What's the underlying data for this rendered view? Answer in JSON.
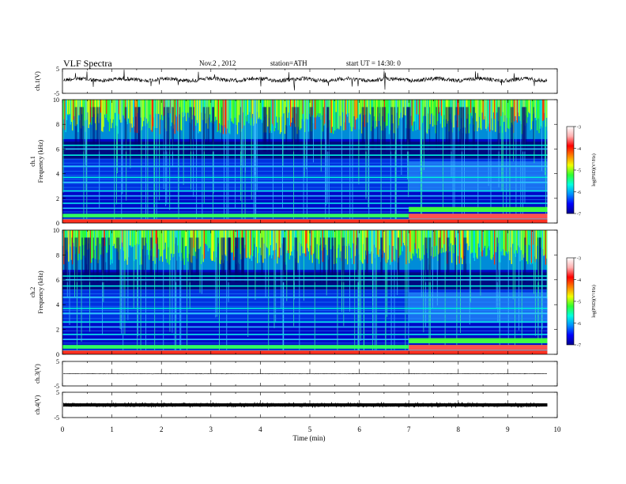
{
  "header": {
    "title": "VLF  Spectra",
    "date": "Nov.2   , 2012",
    "station": "station=ATH",
    "start": "start  UT  =    14:30: 0"
  },
  "chart_data": [
    {
      "type": "line",
      "panel": "ch1-waveform",
      "ylabel": "ch.1(V)",
      "ylim": [
        -5,
        5
      ],
      "yticks": [
        "5",
        "-5"
      ],
      "baseline_v": 0.6,
      "note": "broadband waveform with impulsive spikes"
    },
    {
      "type": "heatmap",
      "panel": "ch1-spectrogram",
      "ylabel": "Frequency  (kHz)",
      "channel_label": "ch.1",
      "ylim": [
        0,
        10
      ],
      "yticks": [
        "0",
        "2",
        "4",
        "6",
        "8",
        "10"
      ],
      "colorbar": {
        "label": "log(PSD)(V²/Hz)",
        "range": [
          -7,
          -3
        ],
        "ticks": [
          "-3",
          "-4",
          "-5",
          "-6",
          "-7"
        ],
        "colors": [
          "#000090",
          "#0000ff",
          "#0090ff",
          "#00ffe0",
          "#30ff30",
          "#f0ff00",
          "#ff8000",
          "#ff0000",
          "#ffb0b0",
          "#ffffff"
        ]
      },
      "bands_khz": [
        0.3,
        0.6,
        1.2,
        1.6,
        2.2,
        2.6,
        3.3,
        3.7,
        4.6,
        5.5,
        6.0,
        6.3
      ],
      "change_time_min": 7.0
    },
    {
      "type": "heatmap",
      "panel": "ch2-spectrogram",
      "ylabel": "Frequency  (kHz)",
      "channel_label": "ch.2",
      "ylim": [
        0,
        10
      ],
      "yticks": [
        "0",
        "2",
        "4",
        "6",
        "8",
        "10"
      ],
      "colorbar": {
        "label": "log(PSD)(V²/Hz)",
        "range": [
          -7,
          -3
        ],
        "ticks": [
          "-3",
          "-4",
          "-5",
          "-6",
          "-7"
        ],
        "colors": [
          "#000090",
          "#0000ff",
          "#0090ff",
          "#00ffe0",
          "#30ff30",
          "#f0ff00",
          "#ff8000",
          "#ff0000",
          "#ffb0b0",
          "#ffffff"
        ]
      },
      "bands_khz": [
        0.3,
        0.6,
        1.2,
        1.6,
        2.2,
        2.6,
        3.3,
        3.7,
        4.6,
        5.5,
        6.0,
        6.3
      ],
      "change_time_min": 7.0
    },
    {
      "type": "line",
      "panel": "ch3-waveform",
      "ylabel": "ch.3(V)",
      "ylim": [
        -5,
        5
      ],
      "yticks": [
        "5",
        "-5"
      ],
      "baseline_v": 0.0
    },
    {
      "type": "line",
      "panel": "ch4-waveform",
      "ylabel": "ch.4(V)",
      "ylim": [
        -5,
        5
      ],
      "yticks": [
        "5",
        "-5"
      ],
      "baseline_v": 0.0
    }
  ],
  "xaxis": {
    "label": "Time  (min)",
    "xlim": [
      0,
      10
    ],
    "ticks": [
      "0",
      "1",
      "2",
      "3",
      "4",
      "5",
      "6",
      "7",
      "8",
      "9",
      "10"
    ],
    "data_end_min": 9.8
  }
}
